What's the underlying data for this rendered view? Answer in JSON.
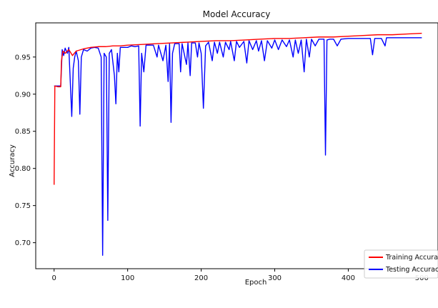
{
  "chart_data": {
    "type": "line",
    "title": "Model Accuracy",
    "xlabel": "Epoch",
    "ylabel": "Accuracy",
    "xlim": [
      -25,
      522
    ],
    "ylim": [
      0.665,
      0.996
    ],
    "xticks": [
      0,
      100,
      200,
      300,
      400,
      500
    ],
    "yticks": [
      0.7,
      0.75,
      0.8,
      0.85,
      0.9,
      0.95
    ],
    "xtick_labels": [
      "0",
      "100",
      "200",
      "300",
      "400",
      "500"
    ],
    "ytick_labels": [
      "0.70",
      "0.75",
      "0.80",
      "0.85",
      "0.90",
      "0.95"
    ],
    "grid": false,
    "legend_position": "bottom-right",
    "series": [
      {
        "name": "Training Accuracy",
        "color": "#ff0000",
        "points": [
          [
            0,
            0.778
          ],
          [
            1,
            0.911
          ],
          [
            5,
            0.91
          ],
          [
            9,
            0.91
          ],
          [
            10,
            0.945
          ],
          [
            12,
            0.958
          ],
          [
            15,
            0.955
          ],
          [
            20,
            0.96
          ],
          [
            25,
            0.952
          ],
          [
            30,
            0.958
          ],
          [
            40,
            0.961
          ],
          [
            50,
            0.963
          ],
          [
            60,
            0.964
          ],
          [
            70,
            0.964
          ],
          [
            80,
            0.965
          ],
          [
            90,
            0.965
          ],
          [
            100,
            0.966
          ],
          [
            120,
            0.967
          ],
          [
            140,
            0.968
          ],
          [
            160,
            0.969
          ],
          [
            180,
            0.97
          ],
          [
            200,
            0.971
          ],
          [
            220,
            0.972
          ],
          [
            240,
            0.972
          ],
          [
            260,
            0.973
          ],
          [
            280,
            0.974
          ],
          [
            300,
            0.975
          ],
          [
            320,
            0.975
          ],
          [
            340,
            0.976
          ],
          [
            360,
            0.977
          ],
          [
            380,
            0.977
          ],
          [
            400,
            0.978
          ],
          [
            420,
            0.979
          ],
          [
            440,
            0.98
          ],
          [
            460,
            0.98
          ],
          [
            480,
            0.981
          ],
          [
            500,
            0.982
          ]
        ]
      },
      {
        "name": "Testing Accuracy",
        "color": "#0000ff",
        "points": [
          [
            0,
            0.911
          ],
          [
            5,
            0.911
          ],
          [
            9,
            0.911
          ],
          [
            11,
            0.96
          ],
          [
            13,
            0.952
          ],
          [
            15,
            0.962
          ],
          [
            18,
            0.955
          ],
          [
            20,
            0.963
          ],
          [
            24,
            0.87
          ],
          [
            26,
            0.935
          ],
          [
            28,
            0.95
          ],
          [
            30,
            0.958
          ],
          [
            33,
            0.945
          ],
          [
            35,
            0.873
          ],
          [
            37,
            0.95
          ],
          [
            40,
            0.96
          ],
          [
            45,
            0.958
          ],
          [
            50,
            0.962
          ],
          [
            55,
            0.963
          ],
          [
            60,
            0.962
          ],
          [
            64,
            0.95
          ],
          [
            66,
            0.683
          ],
          [
            68,
            0.955
          ],
          [
            71,
            0.95
          ],
          [
            73,
            0.73
          ],
          [
            75,
            0.955
          ],
          [
            78,
            0.96
          ],
          [
            82,
            0.925
          ],
          [
            84,
            0.887
          ],
          [
            86,
            0.955
          ],
          [
            88,
            0.93
          ],
          [
            90,
            0.963
          ],
          [
            100,
            0.963
          ],
          [
            105,
            0.965
          ],
          [
            110,
            0.964
          ],
          [
            115,
            0.965
          ],
          [
            117,
            0.857
          ],
          [
            119,
            0.955
          ],
          [
            122,
            0.93
          ],
          [
            125,
            0.966
          ],
          [
            135,
            0.966
          ],
          [
            140,
            0.95
          ],
          [
            142,
            0.966
          ],
          [
            148,
            0.945
          ],
          [
            152,
            0.966
          ],
          [
            155,
            0.917
          ],
          [
            157,
            0.968
          ],
          [
            159,
            0.862
          ],
          [
            161,
            0.955
          ],
          [
            164,
            0.968
          ],
          [
            170,
            0.968
          ],
          [
            172,
            0.93
          ],
          [
            174,
            0.968
          ],
          [
            180,
            0.94
          ],
          [
            182,
            0.969
          ],
          [
            185,
            0.925
          ],
          [
            187,
            0.969
          ],
          [
            192,
            0.969
          ],
          [
            195,
            0.95
          ],
          [
            197,
            0.969
          ],
          [
            200,
            0.955
          ],
          [
            203,
            0.881
          ],
          [
            206,
            0.965
          ],
          [
            210,
            0.97
          ],
          [
            215,
            0.945
          ],
          [
            218,
            0.97
          ],
          [
            222,
            0.955
          ],
          [
            225,
            0.97
          ],
          [
            230,
            0.95
          ],
          [
            233,
            0.97
          ],
          [
            238,
            0.96
          ],
          [
            240,
            0.971
          ],
          [
            245,
            0.945
          ],
          [
            248,
            0.971
          ],
          [
            252,
            0.963
          ],
          [
            258,
            0.971
          ],
          [
            262,
            0.942
          ],
          [
            265,
            0.972
          ],
          [
            270,
            0.96
          ],
          [
            275,
            0.972
          ],
          [
            278,
            0.958
          ],
          [
            282,
            0.972
          ],
          [
            286,
            0.945
          ],
          [
            290,
            0.972
          ],
          [
            296,
            0.962
          ],
          [
            300,
            0.973
          ],
          [
            305,
            0.96
          ],
          [
            310,
            0.973
          ],
          [
            316,
            0.964
          ],
          [
            320,
            0.973
          ],
          [
            325,
            0.95
          ],
          [
            328,
            0.973
          ],
          [
            332,
            0.955
          ],
          [
            336,
            0.973
          ],
          [
            340,
            0.93
          ],
          [
            343,
            0.974
          ],
          [
            347,
            0.95
          ],
          [
            350,
            0.974
          ],
          [
            355,
            0.965
          ],
          [
            360,
            0.974
          ],
          [
            367,
            0.974
          ],
          [
            369,
            0.818
          ],
          [
            371,
            0.973
          ],
          [
            375,
            0.974
          ],
          [
            380,
            0.974
          ],
          [
            385,
            0.965
          ],
          [
            390,
            0.974
          ],
          [
            400,
            0.975
          ],
          [
            410,
            0.975
          ],
          [
            420,
            0.975
          ],
          [
            430,
            0.975
          ],
          [
            433,
            0.953
          ],
          [
            436,
            0.975
          ],
          [
            445,
            0.975
          ],
          [
            450,
            0.965
          ],
          [
            452,
            0.976
          ],
          [
            460,
            0.976
          ],
          [
            470,
            0.976
          ],
          [
            480,
            0.976
          ],
          [
            490,
            0.976
          ],
          [
            500,
            0.976
          ]
        ]
      }
    ]
  }
}
